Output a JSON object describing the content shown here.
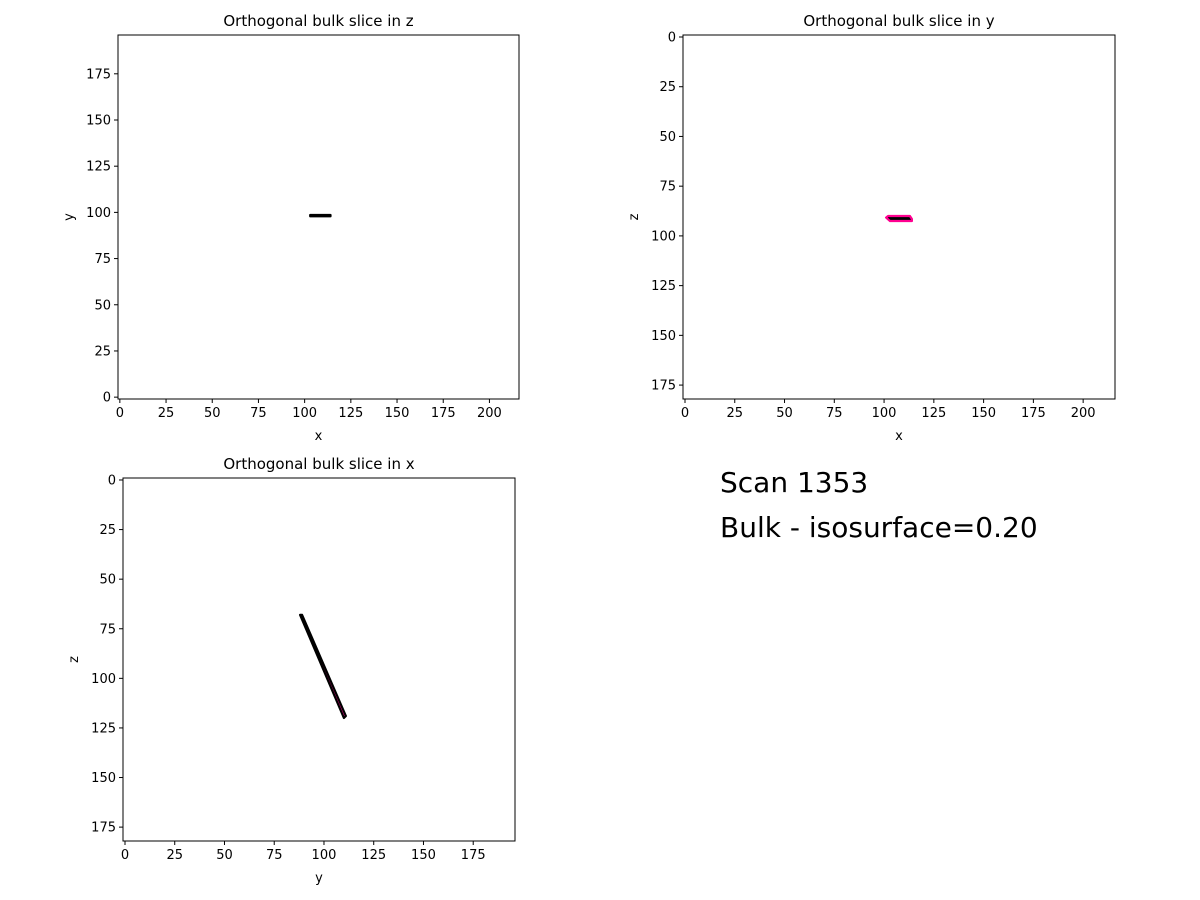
{
  "chart_data": [
    {
      "type": "contour",
      "title": "Orthogonal bulk slice in z",
      "xlabel": "x",
      "ylabel": "y",
      "xlim": [
        -1,
        216
      ],
      "ylim": [
        -1,
        196
      ],
      "y_inverted": false,
      "xticks": [
        0,
        25,
        50,
        75,
        100,
        125,
        150,
        175,
        200
      ],
      "yticks": [
        0,
        25,
        50,
        75,
        100,
        125,
        150,
        175
      ],
      "contour": {
        "fill_color": "#ff0090",
        "edge_color": "#000000",
        "points": [
          [
            103,
            98.6
          ],
          [
            114,
            98.6
          ],
          [
            114,
            97.9
          ],
          [
            103,
            97.9
          ]
        ]
      }
    },
    {
      "type": "contour",
      "title": "Orthogonal bulk slice in y",
      "xlabel": "x",
      "ylabel": "z",
      "xlim": [
        -1,
        216
      ],
      "ylim": [
        182,
        -1
      ],
      "y_inverted": true,
      "xticks": [
        0,
        25,
        50,
        75,
        100,
        125,
        150,
        175,
        200
      ],
      "yticks": [
        0,
        25,
        50,
        75,
        100,
        125,
        150,
        175
      ],
      "contour": {
        "fill_color": "#000000",
        "edge_color": "#ff0090",
        "points": [
          [
            102,
            90
          ],
          [
            113,
            90
          ],
          [
            114,
            91.5
          ],
          [
            114,
            92.5
          ],
          [
            103,
            92.5
          ],
          [
            101,
            90.8
          ]
        ]
      }
    },
    {
      "type": "contour",
      "title": "Orthogonal bulk slice in x",
      "xlabel": "y",
      "ylabel": "z",
      "xlim": [
        -1,
        196
      ],
      "ylim": [
        182,
        -1
      ],
      "y_inverted": true,
      "xticks": [
        0,
        25,
        50,
        75,
        100,
        125,
        150,
        175
      ],
      "yticks": [
        0,
        25,
        50,
        75,
        100,
        125,
        150,
        175
      ],
      "contour": {
        "fill_color": "#ff0090",
        "edge_color": "#000000",
        "points": [
          [
            88,
            68
          ],
          [
            89,
            68
          ],
          [
            111,
            119
          ],
          [
            110,
            120
          ]
        ]
      }
    }
  ],
  "annotation": {
    "scan": "Scan 1353",
    "bulk": "Bulk - isosurface=0.20"
  }
}
